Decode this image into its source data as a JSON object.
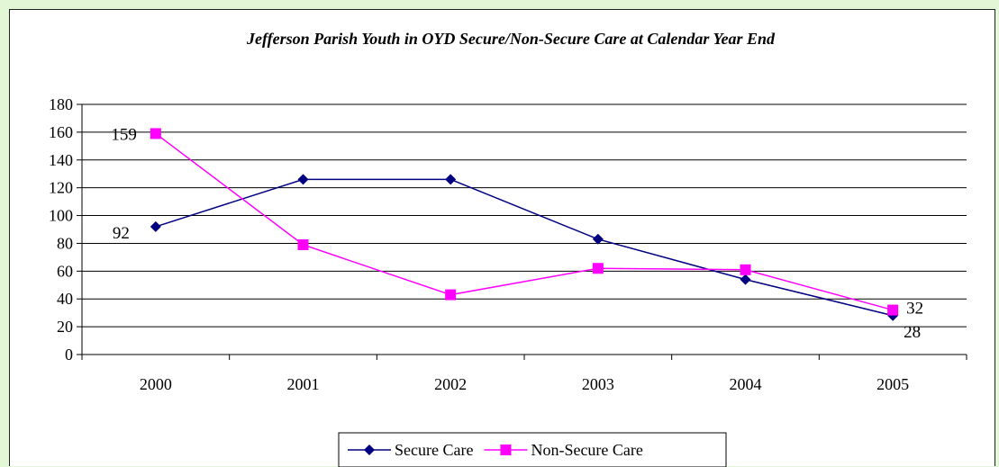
{
  "chart_data": {
    "type": "line",
    "title": "Jefferson Parish Youth in OYD Secure/Non-Secure Care at Calendar Year End",
    "xlabel": "",
    "ylabel": "",
    "categories": [
      "2000",
      "2001",
      "2002",
      "2003",
      "2004",
      "2005"
    ],
    "ylim": [
      0,
      180
    ],
    "yticks": [
      0,
      20,
      40,
      60,
      80,
      100,
      120,
      140,
      160,
      180
    ],
    "grid": true,
    "legend": "bottom",
    "series": [
      {
        "name": "Secure Care",
        "color": "#000080",
        "marker": "diamond",
        "values": [
          92,
          126,
          126,
          83,
          54,
          28
        ],
        "labels": [
          "92",
          "",
          "",
          "",
          "",
          "28"
        ]
      },
      {
        "name": "Non-Secure Care",
        "color": "#ff00ff",
        "marker": "square",
        "values": [
          159,
          79,
          43,
          62,
          61,
          32
        ],
        "labels": [
          "159",
          "",
          "",
          "",
          "",
          "32"
        ]
      }
    ]
  }
}
